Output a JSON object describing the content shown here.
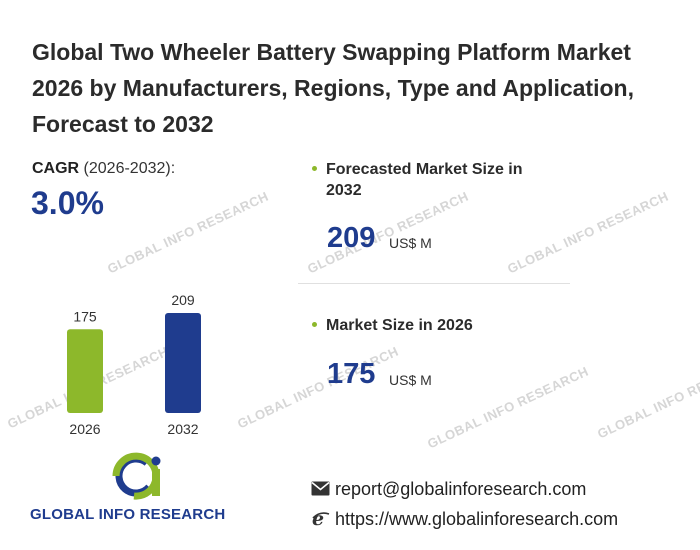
{
  "title": "Global Two Wheeler Battery Swapping Platform Market 2026 by Manufacturers, Regions, Type and Application, Forecast to 2032",
  "cagr": {
    "label_bold": "CAGR",
    "label_period": " (2026-2032):",
    "value": "3.0%"
  },
  "stats": {
    "forecast_label": "Forecasted Market Size in 2032",
    "forecast_value": "209",
    "forecast_unit": "US$ M",
    "current_label": "Market Size in 2026",
    "current_value": "175",
    "current_unit": "US$ M"
  },
  "brand": {
    "name": "GLOBAL INFO RESEARCH",
    "watermark": "GLOBAL INFO RESEARCH"
  },
  "contact": {
    "email": "report@globalinforesearch.com",
    "website": "https://www.globalinforesearch.com"
  },
  "colors": {
    "accent_green": "#8db82b",
    "accent_navy": "#1f3c8e"
  },
  "chart_data": {
    "type": "bar",
    "categories": [
      "2026",
      "2032"
    ],
    "values": [
      175,
      209
    ],
    "colors": [
      "#8db82b",
      "#1f3c8e"
    ],
    "ylim": [
      0,
      209
    ],
    "grid": false,
    "title": "",
    "xlabel": "",
    "ylabel": ""
  }
}
